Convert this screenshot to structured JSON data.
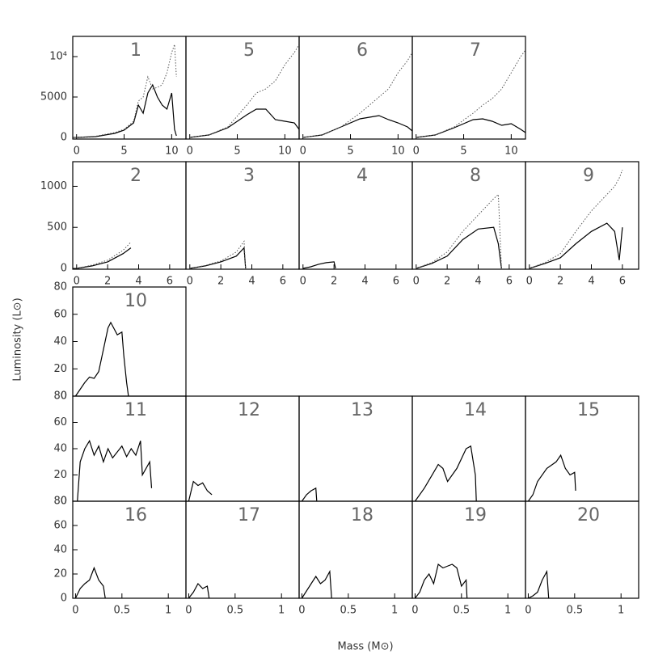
{
  "xlabel": "Mass (M⊙)",
  "ylabel": "Luminosity (L⊙)",
  "chart_data": [
    {
      "type": "line",
      "title": "1",
      "xlim": [
        -0.4,
        11.5
      ],
      "ylim": [
        -200,
        12500
      ],
      "xticks": [
        0,
        5,
        10
      ],
      "yticks": [
        0,
        5000,
        {
          "value": 10000,
          "label": "10⁴"
        }
      ],
      "x": [
        0,
        2,
        4,
        5,
        6,
        6.5,
        7,
        7.5,
        8,
        8.5,
        9,
        9.5,
        10,
        10.3,
        10.5
      ],
      "series": [
        {
          "color": "#000",
          "style": "solid",
          "values": [
            0,
            100,
            500,
            900,
            1800,
            4000,
            3000,
            5500,
            6500,
            5000,
            4000,
            3500,
            5500,
            1000,
            200
          ]
        },
        {
          "color": "#555",
          "style": "dotted",
          "values": [
            0,
            150,
            600,
            1000,
            2000,
            4500,
            5000,
            7500,
            6000,
            6200,
            6500,
            8000,
            10500,
            11500,
            7500
          ]
        }
      ]
    },
    {
      "type": "line",
      "title": "5",
      "xlim": [
        -0.4,
        11.5
      ],
      "ylim": [
        -200,
        12500
      ],
      "xticks": [
        0,
        5,
        10
      ],
      "x": [
        0,
        2,
        4,
        6,
        7,
        8,
        9,
        10,
        11,
        11.5
      ],
      "series": [
        {
          "color": "#000",
          "style": "solid",
          "values": [
            0,
            300,
            1200,
            2800,
            3500,
            3500,
            2200,
            2000,
            1800,
            1000
          ]
        },
        {
          "color": "#555",
          "style": "dotted",
          "values": [
            0,
            300,
            1300,
            4000,
            5500,
            6000,
            7000,
            9000,
            10500,
            11500
          ]
        }
      ]
    },
    {
      "type": "line",
      "title": "6",
      "xlim": [
        -0.4,
        11.5
      ],
      "ylim": [
        -200,
        12500
      ],
      "xticks": [
        0,
        5,
        10
      ],
      "x": [
        0,
        2,
        4,
        6,
        7,
        8,
        9,
        10,
        11,
        11.5
      ],
      "series": [
        {
          "color": "#000",
          "style": "solid",
          "values": [
            0,
            300,
            1300,
            2300,
            2500,
            2700,
            2200,
            1800,
            1300,
            800
          ]
        },
        {
          "color": "#555",
          "style": "dotted",
          "values": [
            0,
            300,
            1300,
            3000,
            4000,
            5000,
            6000,
            8000,
            9500,
            10500
          ]
        }
      ]
    },
    {
      "type": "line",
      "title": "7",
      "xlim": [
        -0.4,
        11.5
      ],
      "ylim": [
        -200,
        12500
      ],
      "xticks": [
        0,
        5,
        10
      ],
      "x": [
        0,
        2,
        4,
        6,
        7,
        8,
        9,
        10,
        11,
        11.5
      ],
      "series": [
        {
          "color": "#000",
          "style": "solid",
          "values": [
            0,
            300,
            1200,
            2200,
            2300,
            2000,
            1500,
            1700,
            1000,
            600
          ]
        },
        {
          "color": "#555",
          "style": "dotted",
          "values": [
            0,
            300,
            1300,
            3000,
            4000,
            4800,
            6000,
            8000,
            10000,
            10800
          ]
        }
      ]
    },
    {
      "type": "line",
      "title": "2",
      "xlim": [
        -0.25,
        7.05
      ],
      "ylim": [
        -10,
        1300
      ],
      "xticks": [
        0,
        2,
        4,
        6
      ],
      "yticks": [
        0,
        500,
        1000
      ],
      "x": [
        0,
        1,
        2,
        3,
        3.5
      ],
      "series": [
        {
          "color": "#000",
          "style": "solid",
          "values": [
            0,
            30,
            80,
            180,
            250
          ]
        },
        {
          "color": "#555",
          "style": "dotted",
          "values": [
            0,
            40,
            100,
            220,
            320
          ]
        }
      ]
    },
    {
      "type": "line",
      "title": "3",
      "xlim": [
        -0.25,
        7.05
      ],
      "ylim": [
        -10,
        1300
      ],
      "xticks": [
        0,
        2,
        4,
        6
      ],
      "x": [
        0,
        1,
        2,
        3,
        3.5,
        3.6
      ],
      "series": [
        {
          "color": "#000",
          "style": "solid",
          "values": [
            0,
            30,
            80,
            150,
            250,
            0
          ]
        },
        {
          "color": "#555",
          "style": "dotted",
          "values": [
            0,
            35,
            90,
            200,
            330,
            0
          ]
        }
      ]
    },
    {
      "type": "line",
      "title": "4",
      "xlim": [
        -0.25,
        7.05
      ],
      "ylim": [
        -10,
        1300
      ],
      "xticks": [
        0,
        2,
        4,
        6
      ],
      "x": [
        0,
        0.5,
        1,
        1.5,
        2,
        2.1
      ],
      "series": [
        {
          "color": "#000",
          "style": "solid",
          "values": [
            0,
            20,
            50,
            70,
            80,
            0
          ]
        }
      ]
    },
    {
      "type": "line",
      "title": "8",
      "xlim": [
        -0.25,
        7.05
      ],
      "ylim": [
        -10,
        1300
      ],
      "xticks": [
        0,
        2,
        4,
        6
      ],
      "x": [
        0,
        1,
        2,
        3,
        4,
        5,
        5.3,
        5.5
      ],
      "series": [
        {
          "color": "#000",
          "style": "solid",
          "values": [
            0,
            60,
            150,
            350,
            480,
            500,
            300,
            0
          ]
        },
        {
          "color": "#555",
          "style": "dotted",
          "values": [
            0,
            70,
            200,
            450,
            650,
            850,
            900,
            0
          ]
        }
      ]
    },
    {
      "type": "line",
      "title": "9",
      "xlim": [
        -0.25,
        7.05
      ],
      "ylim": [
        -10,
        1300
      ],
      "xticks": [
        0,
        2,
        4,
        6
      ],
      "x": [
        0,
        1,
        2,
        3,
        4,
        5,
        5.5,
        5.8,
        6
      ],
      "series": [
        {
          "color": "#000",
          "style": "solid",
          "values": [
            0,
            60,
            130,
            300,
            450,
            550,
            450,
            100,
            500
          ]
        },
        {
          "color": "#555",
          "style": "dotted",
          "values": [
            0,
            70,
            180,
            450,
            700,
            900,
            1000,
            1100,
            1200
          ]
        }
      ]
    },
    {
      "type": "line",
      "title": "10",
      "xlim": [
        -0.03,
        1.19
      ],
      "ylim": [
        0,
        80
      ],
      "yticks": [
        0,
        20,
        40,
        60,
        80
      ],
      "x": [
        0,
        0.1,
        0.15,
        0.2,
        0.25,
        0.35,
        0.38,
        0.45,
        0.5,
        0.52,
        0.55,
        0.57
      ],
      "series": [
        {
          "color": "#000",
          "style": "solid",
          "values": [
            0,
            10,
            14,
            13,
            18,
            50,
            54,
            45,
            47,
            30,
            10,
            0
          ]
        }
      ]
    },
    {
      "type": "line",
      "title": "11",
      "xlim": [
        -0.03,
        1.19
      ],
      "ylim": [
        0,
        80
      ],
      "yticks": [
        0,
        20,
        40,
        60,
        80
      ],
      "x": [
        0.02,
        0.05,
        0.1,
        0.15,
        0.2,
        0.25,
        0.3,
        0.35,
        0.4,
        0.5,
        0.55,
        0.6,
        0.65,
        0.7,
        0.72,
        0.8,
        0.82
      ],
      "series": [
        {
          "color": "#000",
          "style": "solid",
          "values": [
            0,
            30,
            40,
            46,
            35,
            42,
            30,
            40,
            33,
            42,
            34,
            40,
            35,
            46,
            20,
            30,
            10
          ]
        }
      ]
    },
    {
      "type": "line",
      "title": "12",
      "xlim": [
        -0.03,
        1.19
      ],
      "ylim": [
        0,
        80
      ],
      "x": [
        0,
        0.05,
        0.1,
        0.15,
        0.2,
        0.25
      ],
      "series": [
        {
          "color": "#000",
          "style": "solid",
          "values": [
            0,
            15,
            12,
            14,
            8,
            5
          ]
        }
      ]
    },
    {
      "type": "line",
      "title": "13",
      "xlim": [
        -0.03,
        1.19
      ],
      "ylim": [
        0,
        80
      ],
      "x": [
        0,
        0.05,
        0.1,
        0.15,
        0.16
      ],
      "series": [
        {
          "color": "#000",
          "style": "solid",
          "values": [
            0,
            5,
            8,
            10,
            0
          ]
        }
      ]
    },
    {
      "type": "line",
      "title": "14",
      "xlim": [
        -0.03,
        1.19
      ],
      "ylim": [
        0,
        80
      ],
      "x": [
        0,
        0.1,
        0.2,
        0.25,
        0.3,
        0.35,
        0.45,
        0.55,
        0.6,
        0.65,
        0.66
      ],
      "series": [
        {
          "color": "#000",
          "style": "solid",
          "values": [
            0,
            10,
            22,
            28,
            25,
            15,
            25,
            40,
            42,
            20,
            0
          ]
        }
      ]
    },
    {
      "type": "line",
      "title": "15",
      "xlim": [
        -0.03,
        1.19
      ],
      "ylim": [
        0,
        80
      ],
      "x": [
        0,
        0.05,
        0.1,
        0.2,
        0.3,
        0.35,
        0.4,
        0.45,
        0.5,
        0.51
      ],
      "series": [
        {
          "color": "#000",
          "style": "solid",
          "values": [
            0,
            5,
            15,
            25,
            30,
            35,
            25,
            20,
            22,
            8
          ]
        }
      ]
    },
    {
      "type": "line",
      "title": "16",
      "xlim": [
        -0.03,
        1.19
      ],
      "ylim": [
        0,
        80
      ],
      "xticks": [
        0,
        0.5,
        1
      ],
      "yticks": [
        0,
        20,
        40,
        60,
        80
      ],
      "x": [
        0,
        0.05,
        0.1,
        0.15,
        0.2,
        0.25,
        0.3,
        0.32
      ],
      "series": [
        {
          "color": "#000",
          "style": "solid",
          "values": [
            0,
            8,
            12,
            15,
            25,
            15,
            10,
            0
          ]
        }
      ]
    },
    {
      "type": "line",
      "title": "17",
      "xlim": [
        -0.03,
        1.19
      ],
      "ylim": [
        0,
        80
      ],
      "xticks": [
        0,
        0.5,
        1
      ],
      "x": [
        0,
        0.05,
        0.1,
        0.15,
        0.2,
        0.22
      ],
      "series": [
        {
          "color": "#000",
          "style": "solid",
          "values": [
            0,
            5,
            12,
            8,
            10,
            0
          ]
        }
      ]
    },
    {
      "type": "line",
      "title": "18",
      "xlim": [
        -0.03,
        1.19
      ],
      "ylim": [
        0,
        80
      ],
      "xticks": [
        0,
        0.5,
        1
      ],
      "x": [
        0,
        0.1,
        0.15,
        0.2,
        0.25,
        0.3,
        0.32
      ],
      "series": [
        {
          "color": "#000",
          "style": "solid",
          "values": [
            0,
            12,
            18,
            12,
            15,
            22,
            0
          ]
        }
      ]
    },
    {
      "type": "line",
      "title": "19",
      "xlim": [
        -0.03,
        1.19
      ],
      "ylim": [
        0,
        80
      ],
      "xticks": [
        0,
        0.5,
        1
      ],
      "x": [
        0,
        0.05,
        0.1,
        0.15,
        0.2,
        0.25,
        0.3,
        0.4,
        0.45,
        0.5,
        0.55,
        0.56
      ],
      "series": [
        {
          "color": "#000",
          "style": "solid",
          "values": [
            0,
            5,
            15,
            20,
            12,
            28,
            25,
            28,
            25,
            10,
            15,
            0
          ]
        }
      ]
    },
    {
      "type": "line",
      "title": "20",
      "xlim": [
        -0.03,
        1.19
      ],
      "ylim": [
        0,
        80
      ],
      "xticks": [
        0,
        0.5,
        1
      ],
      "x": [
        0,
        0.05,
        0.1,
        0.15,
        0.2,
        0.22
      ],
      "series": [
        {
          "color": "#000",
          "style": "solid",
          "values": [
            0,
            2,
            5,
            15,
            22,
            0
          ]
        }
      ]
    }
  ]
}
